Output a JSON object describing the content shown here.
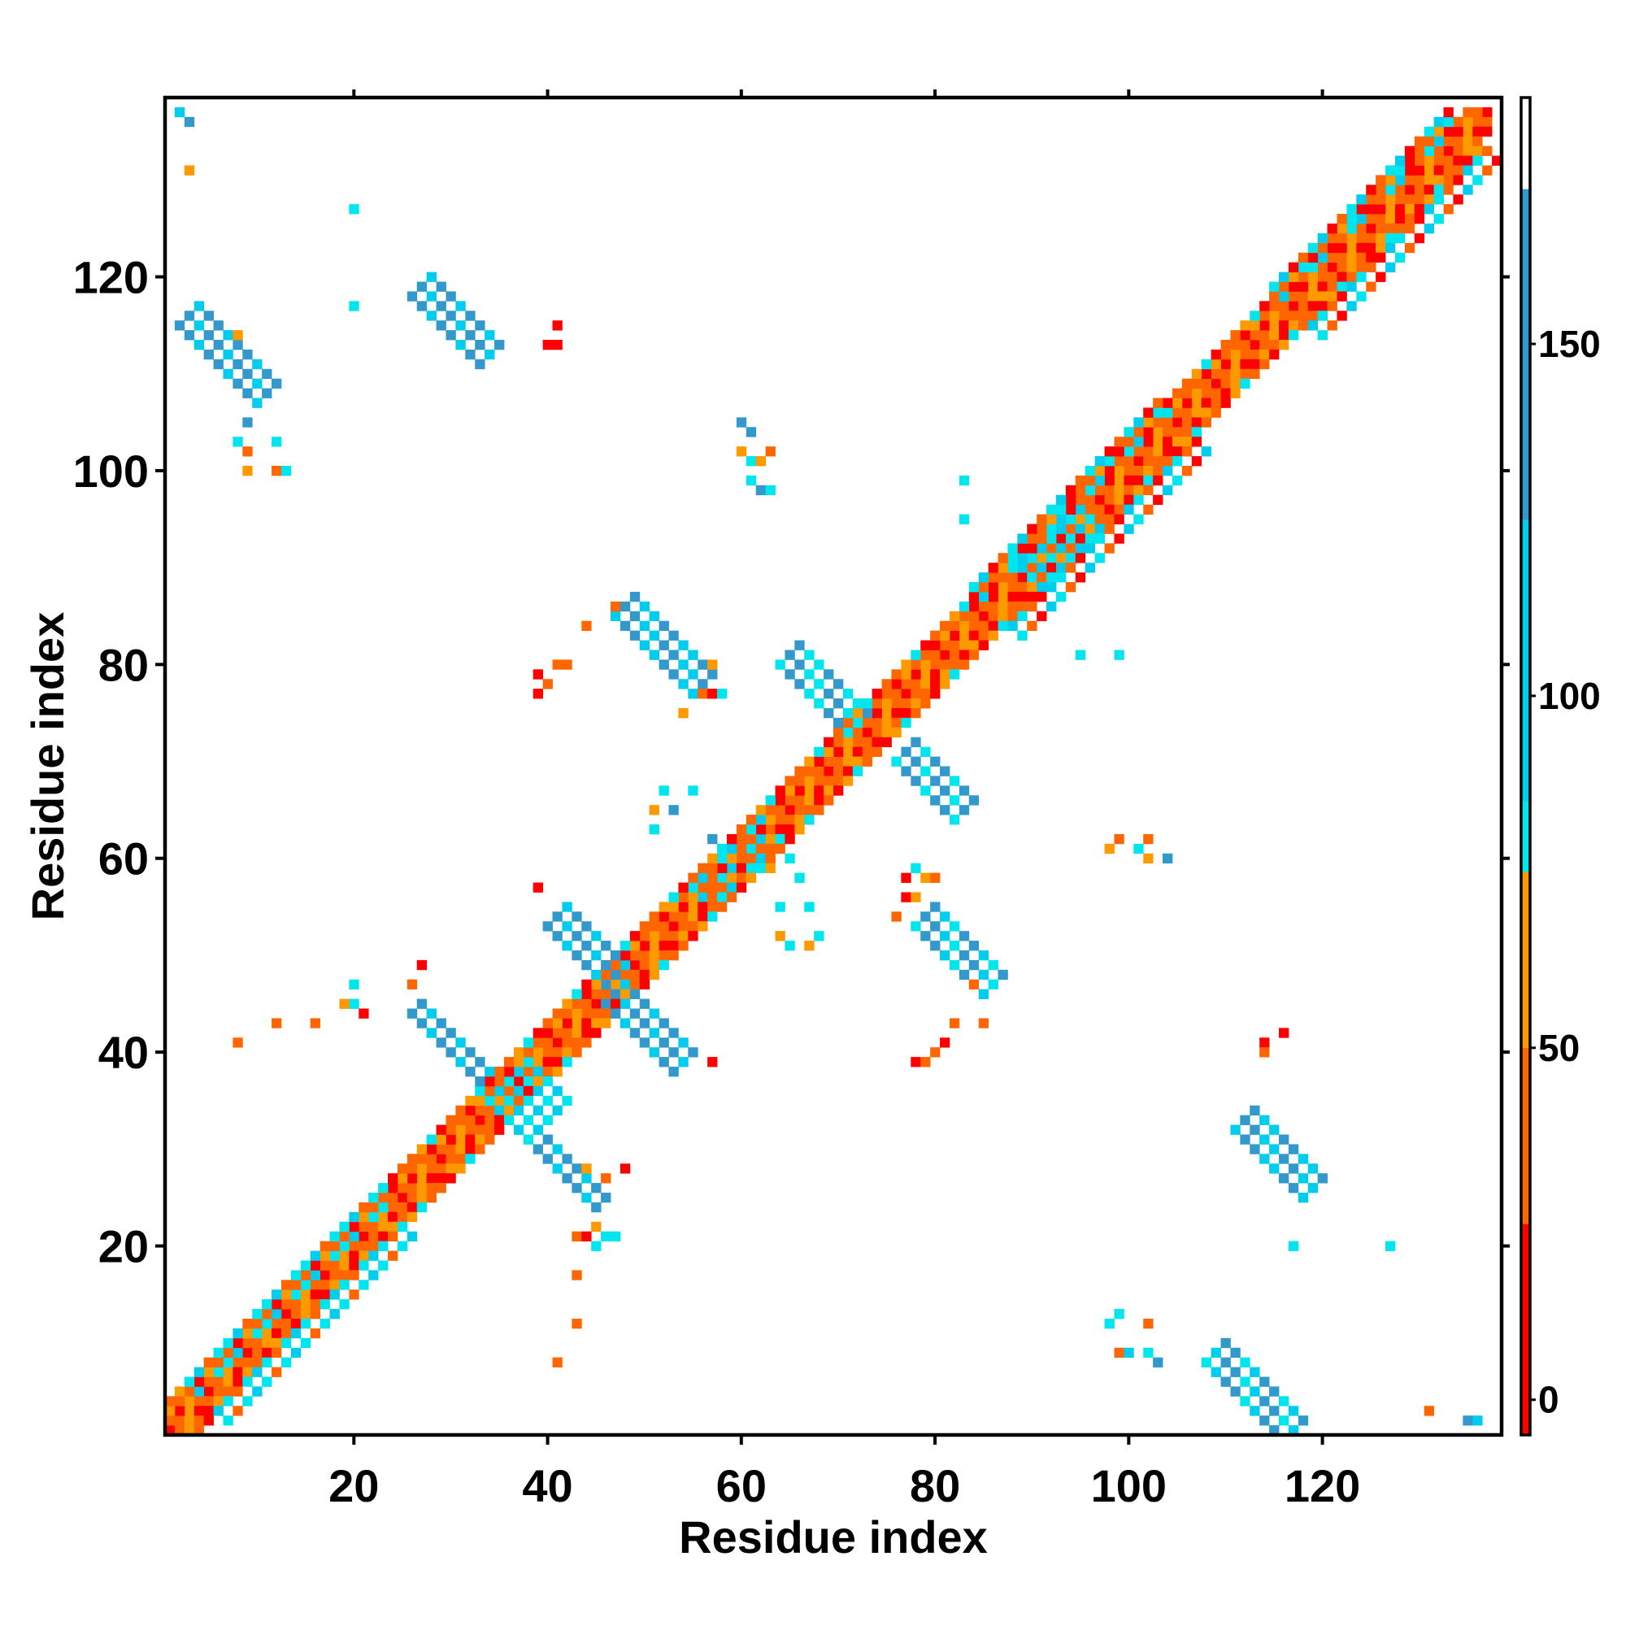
{
  "chart_data": {
    "type": "heatmap",
    "title": "",
    "xlabel": "Residue index",
    "ylabel": "Residue index",
    "xlim": [
      0.5,
      138.5
    ],
    "ylim": [
      0.5,
      138.5
    ],
    "xticks": [
      20,
      40,
      60,
      80,
      100,
      120
    ],
    "yticks": [
      20,
      40,
      60,
      80,
      100,
      120
    ],
    "colorbar": {
      "ticks": [
        0,
        50,
        100,
        150
      ],
      "range": [
        -5,
        185
      ],
      "bands": [
        {
          "from": -5,
          "to": 25,
          "color": "#ff0000"
        },
        {
          "from": 25,
          "to": 50,
          "color": "#ff6600"
        },
        {
          "from": 50,
          "to": 75,
          "color": "#ff9900"
        },
        {
          "from": 75,
          "to": 85,
          "color": "#00e5ee"
        },
        {
          "from": 85,
          "to": 125,
          "color": "#00ccee"
        },
        {
          "from": 125,
          "to": 172,
          "color": "#3399cc"
        },
        {
          "from": 172,
          "to": 185,
          "color": "#ffffff"
        }
      ]
    },
    "colors": {
      "red": "#ff0000",
      "orange": "#ff6600",
      "amber": "#ff9900",
      "cyan": "#00e5ee",
      "sky": "#00ccee",
      "steel": "#3399cc"
    },
    "segments": [
      {
        "x": [
          1,
          137
        ],
        "y": [
          1,
          137
        ],
        "w": 1,
        "c": [
          "red",
          "orange",
          "amber",
          "orange"
        ]
      },
      {
        "x": [
          2,
          137
        ],
        "y": [
          1,
          136
        ],
        "w": 1,
        "c": [
          "orange",
          "amber",
          "red",
          "orange"
        ]
      },
      {
        "x": [
          1,
          136
        ],
        "y": [
          2,
          137
        ],
        "w": 1,
        "c": [
          "orange",
          "red",
          "amber",
          "orange"
        ]
      },
      {
        "x": [
          3,
          137
        ],
        "y": [
          1,
          135
        ],
        "w": 1,
        "c": [
          "amber",
          "orange",
          "red"
        ]
      },
      {
        "x": [
          1,
          135
        ],
        "y": [
          3,
          137
        ],
        "w": 1,
        "c": [
          "amber",
          "orange",
          "orange",
          "red"
        ]
      },
      {
        "x": [
          4,
          136
        ],
        "y": [
          1,
          133
        ],
        "w": 1,
        "c": [
          "orange",
          "red",
          "amber",
          "cyan",
          "orange"
        ]
      },
      {
        "x": [
          1,
          133
        ],
        "y": [
          4,
          136
        ],
        "w": 1,
        "c": [
          "orange",
          "amber",
          "cyan",
          "red",
          "orange"
        ]
      },
      {
        "x": [
          6,
          25
        ],
        "y": [
          3,
          22
        ],
        "w": 2,
        "c": [
          "sky",
          "cyan",
          "orange",
          "cyan"
        ]
      },
      {
        "x": [
          3,
          22
        ],
        "y": [
          6,
          25
        ],
        "w": 2,
        "c": [
          "cyan",
          "sky",
          "orange",
          "cyan"
        ]
      },
      {
        "x": [
          88,
          107
        ],
        "y": [
          84,
          103
        ],
        "w": 2,
        "c": [
          "sky",
          "cyan",
          "orange",
          "red"
        ]
      },
      {
        "x": [
          84,
          103
        ],
        "y": [
          88,
          107
        ],
        "w": 2,
        "c": [
          "cyan",
          "sky",
          "red",
          "orange"
        ]
      },
      {
        "x": [
          119,
          137
        ],
        "y": [
          115,
          133
        ],
        "w": 2,
        "c": [
          "sky",
          "cyan",
          "orange",
          "red"
        ]
      },
      {
        "x": [
          115,
          133
        ],
        "y": [
          119,
          137
        ],
        "w": 2,
        "c": [
          "cyan",
          "sky",
          "red",
          "orange"
        ]
      },
      {
        "x": [
          34,
          38
        ],
        "y": [
          35,
          39
        ],
        "w": 5,
        "c": [
          "cyan",
          "sky"
        ]
      },
      {
        "x": [
          89,
          95
        ],
        "y": [
          90,
          94
        ],
        "w": 3,
        "c": [
          "sky",
          "cyan"
        ]
      },
      {
        "x": [
          55,
          62
        ],
        "y": [
          57,
          62
        ],
        "w": 3,
        "c": [
          "cyan",
          "sky",
          "orange"
        ]
      },
      {
        "x": [
          26,
          33
        ],
        "y": [
          44,
          37
        ],
        "w": 2,
        "c": [
          "steel",
          "steel",
          "sky"
        ]
      },
      {
        "x": [
          39,
          45
        ],
        "y": [
          30,
          24
        ],
        "w": 2,
        "c": [
          "steel",
          "steel",
          "sky"
        ]
      },
      {
        "x": [
          40,
          46
        ],
        "y": [
          53,
          47
        ],
        "w": 3,
        "c": [
          "steel",
          "steel",
          "sky"
        ]
      },
      {
        "x": [
          46,
          53
        ],
        "y": [
          45,
          38
        ],
        "w": 3,
        "c": [
          "steel",
          "steel",
          "sky"
        ]
      },
      {
        "x": [
          47,
          54
        ],
        "y": [
          85,
          77
        ],
        "w": 3,
        "c": [
          "sky",
          "steel",
          "steel",
          "sky"
        ]
      },
      {
        "x": [
          64,
          71
        ],
        "y": [
          80,
          75
        ],
        "w": 3,
        "c": [
          "cyan",
          "steel",
          "steel",
          "cyan"
        ]
      },
      {
        "x": [
          76,
          80
        ],
        "y": [
          70,
          64
        ],
        "w": 3,
        "c": [
          "cyan",
          "steel",
          "steel"
        ]
      },
      {
        "x": [
          78,
          85
        ],
        "y": [
          53,
          46
        ],
        "w": 3,
        "c": [
          "cyan",
          "steel",
          "steel",
          "sky"
        ]
      },
      {
        "x": [
          26,
          32
        ],
        "y": [
          118,
          111
        ],
        "w": 3,
        "c": [
          "steel",
          "steel",
          "sky"
        ]
      },
      {
        "x": [
          2,
          9
        ],
        "y": [
          115,
          107
        ],
        "w": 3,
        "c": [
          "steel",
          "steel",
          "sky"
        ]
      },
      {
        "x": [
          111,
          118
        ],
        "y": [
          32,
          25
        ],
        "w": 3,
        "c": [
          "sky",
          "steel",
          "steel",
          "sky"
        ]
      },
      {
        "x": [
          108,
          116
        ],
        "y": [
          8,
          1
        ],
        "w": 3,
        "c": [
          "cyan",
          "sky",
          "steel",
          "steel"
        ]
      }
    ],
    "cells": [
      [
        2,
        137,
        "sky"
      ],
      [
        3,
        136,
        "steel"
      ],
      [
        3,
        131,
        "amber"
      ],
      [
        20,
        127,
        "cyan"
      ],
      [
        20,
        117,
        "cyan"
      ],
      [
        41,
        115,
        "red"
      ],
      [
        40,
        113,
        "red"
      ],
      [
        41,
        113,
        "red"
      ],
      [
        8,
        114,
        "amber"
      ],
      [
        9,
        105,
        "steel"
      ],
      [
        8,
        103,
        "cyan"
      ],
      [
        9,
        102,
        "orange"
      ],
      [
        12,
        103,
        "cyan"
      ],
      [
        9,
        100,
        "amber"
      ],
      [
        12,
        100,
        "orange"
      ],
      [
        13,
        100,
        "cyan"
      ],
      [
        60,
        105,
        "steel"
      ],
      [
        61,
        104,
        "steel"
      ],
      [
        60,
        102,
        "amber"
      ],
      [
        61,
        101,
        "cyan"
      ],
      [
        62,
        101,
        "amber"
      ],
      [
        63,
        102,
        "orange"
      ],
      [
        61,
        99,
        "cyan"
      ],
      [
        62,
        98,
        "steel"
      ],
      [
        63,
        98,
        "cyan"
      ],
      [
        83,
        99,
        "cyan"
      ],
      [
        83,
        95,
        "cyan"
      ],
      [
        95,
        81,
        "cyan"
      ],
      [
        99,
        81,
        "cyan"
      ],
      [
        44,
        84,
        "orange"
      ],
      [
        47,
        86,
        "orange"
      ],
      [
        41,
        80,
        "orange"
      ],
      [
        42,
        80,
        "orange"
      ],
      [
        39,
        79,
        "red"
      ],
      [
        40,
        78,
        "orange"
      ],
      [
        39,
        77,
        "red"
      ],
      [
        57,
        80,
        "amber"
      ],
      [
        56,
        77,
        "orange"
      ],
      [
        57,
        77,
        "red"
      ],
      [
        58,
        77,
        "cyan"
      ],
      [
        54,
        75,
        "amber"
      ],
      [
        52,
        67,
        "cyan"
      ],
      [
        55,
        67,
        "cyan"
      ],
      [
        51,
        65,
        "amber"
      ],
      [
        53,
        65,
        "steel"
      ],
      [
        51,
        63,
        "cyan"
      ],
      [
        57,
        62,
        "steel"
      ],
      [
        65,
        60,
        "cyan"
      ],
      [
        66,
        58,
        "cyan"
      ],
      [
        63,
        59,
        "amber"
      ],
      [
        64,
        55,
        "cyan"
      ],
      [
        67,
        55,
        "cyan"
      ],
      [
        64,
        52,
        "amber"
      ],
      [
        65,
        51,
        "cyan"
      ],
      [
        67,
        51,
        "amber"
      ],
      [
        68,
        52,
        "cyan"
      ],
      [
        39,
        57,
        "red"
      ],
      [
        77,
        58,
        "red"
      ],
      [
        78,
        59,
        "cyan"
      ],
      [
        79,
        58,
        "amber"
      ],
      [
        80,
        58,
        "orange"
      ],
      [
        77,
        56,
        "red"
      ],
      [
        78,
        56,
        "amber"
      ],
      [
        76,
        54,
        "orange"
      ],
      [
        82,
        43,
        "orange"
      ],
      [
        81,
        41,
        "red"
      ],
      [
        80,
        40,
        "orange"
      ],
      [
        78,
        39,
        "red"
      ],
      [
        79,
        39,
        "orange"
      ],
      [
        85,
        43,
        "orange"
      ],
      [
        84,
        47,
        "orange"
      ],
      [
        27,
        49,
        "red"
      ],
      [
        26,
        47,
        "orange"
      ],
      [
        20,
        47,
        "cyan"
      ],
      [
        20,
        45,
        "cyan"
      ],
      [
        21,
        44,
        "red"
      ],
      [
        19,
        45,
        "amber"
      ],
      [
        12,
        43,
        "orange"
      ],
      [
        16,
        43,
        "orange"
      ],
      [
        8,
        41,
        "orange"
      ],
      [
        57,
        39,
        "red"
      ],
      [
        99,
        62,
        "orange"
      ],
      [
        98,
        61,
        "amber"
      ],
      [
        102,
        62,
        "orange"
      ],
      [
        101,
        61,
        "cyan"
      ],
      [
        102,
        60,
        "amber"
      ],
      [
        104,
        60,
        "steel"
      ],
      [
        114,
        41,
        "red"
      ],
      [
        116,
        42,
        "red"
      ],
      [
        114,
        40,
        "orange"
      ],
      [
        117,
        20,
        "cyan"
      ],
      [
        127,
        20,
        "cyan"
      ],
      [
        44,
        28,
        "amber"
      ],
      [
        46,
        27,
        "orange"
      ],
      [
        48,
        28,
        "red"
      ],
      [
        43,
        21,
        "orange"
      ],
      [
        44,
        21,
        "red"
      ],
      [
        45,
        22,
        "amber"
      ],
      [
        46,
        21,
        "cyan"
      ],
      [
        47,
        21,
        "cyan"
      ],
      [
        45,
        20,
        "cyan"
      ],
      [
        43,
        17,
        "orange"
      ],
      [
        43,
        12,
        "orange"
      ],
      [
        41,
        8,
        "orange"
      ],
      [
        98,
        12,
        "cyan"
      ],
      [
        99,
        13,
        "cyan"
      ],
      [
        102,
        12,
        "orange"
      ],
      [
        99,
        9,
        "orange"
      ],
      [
        100,
        9,
        "sky"
      ],
      [
        102,
        9,
        "cyan"
      ],
      [
        103,
        8,
        "steel"
      ],
      [
        131,
        3,
        "orange"
      ],
      [
        135,
        2,
        "steel"
      ],
      [
        136,
        2,
        "sky"
      ]
    ]
  }
}
